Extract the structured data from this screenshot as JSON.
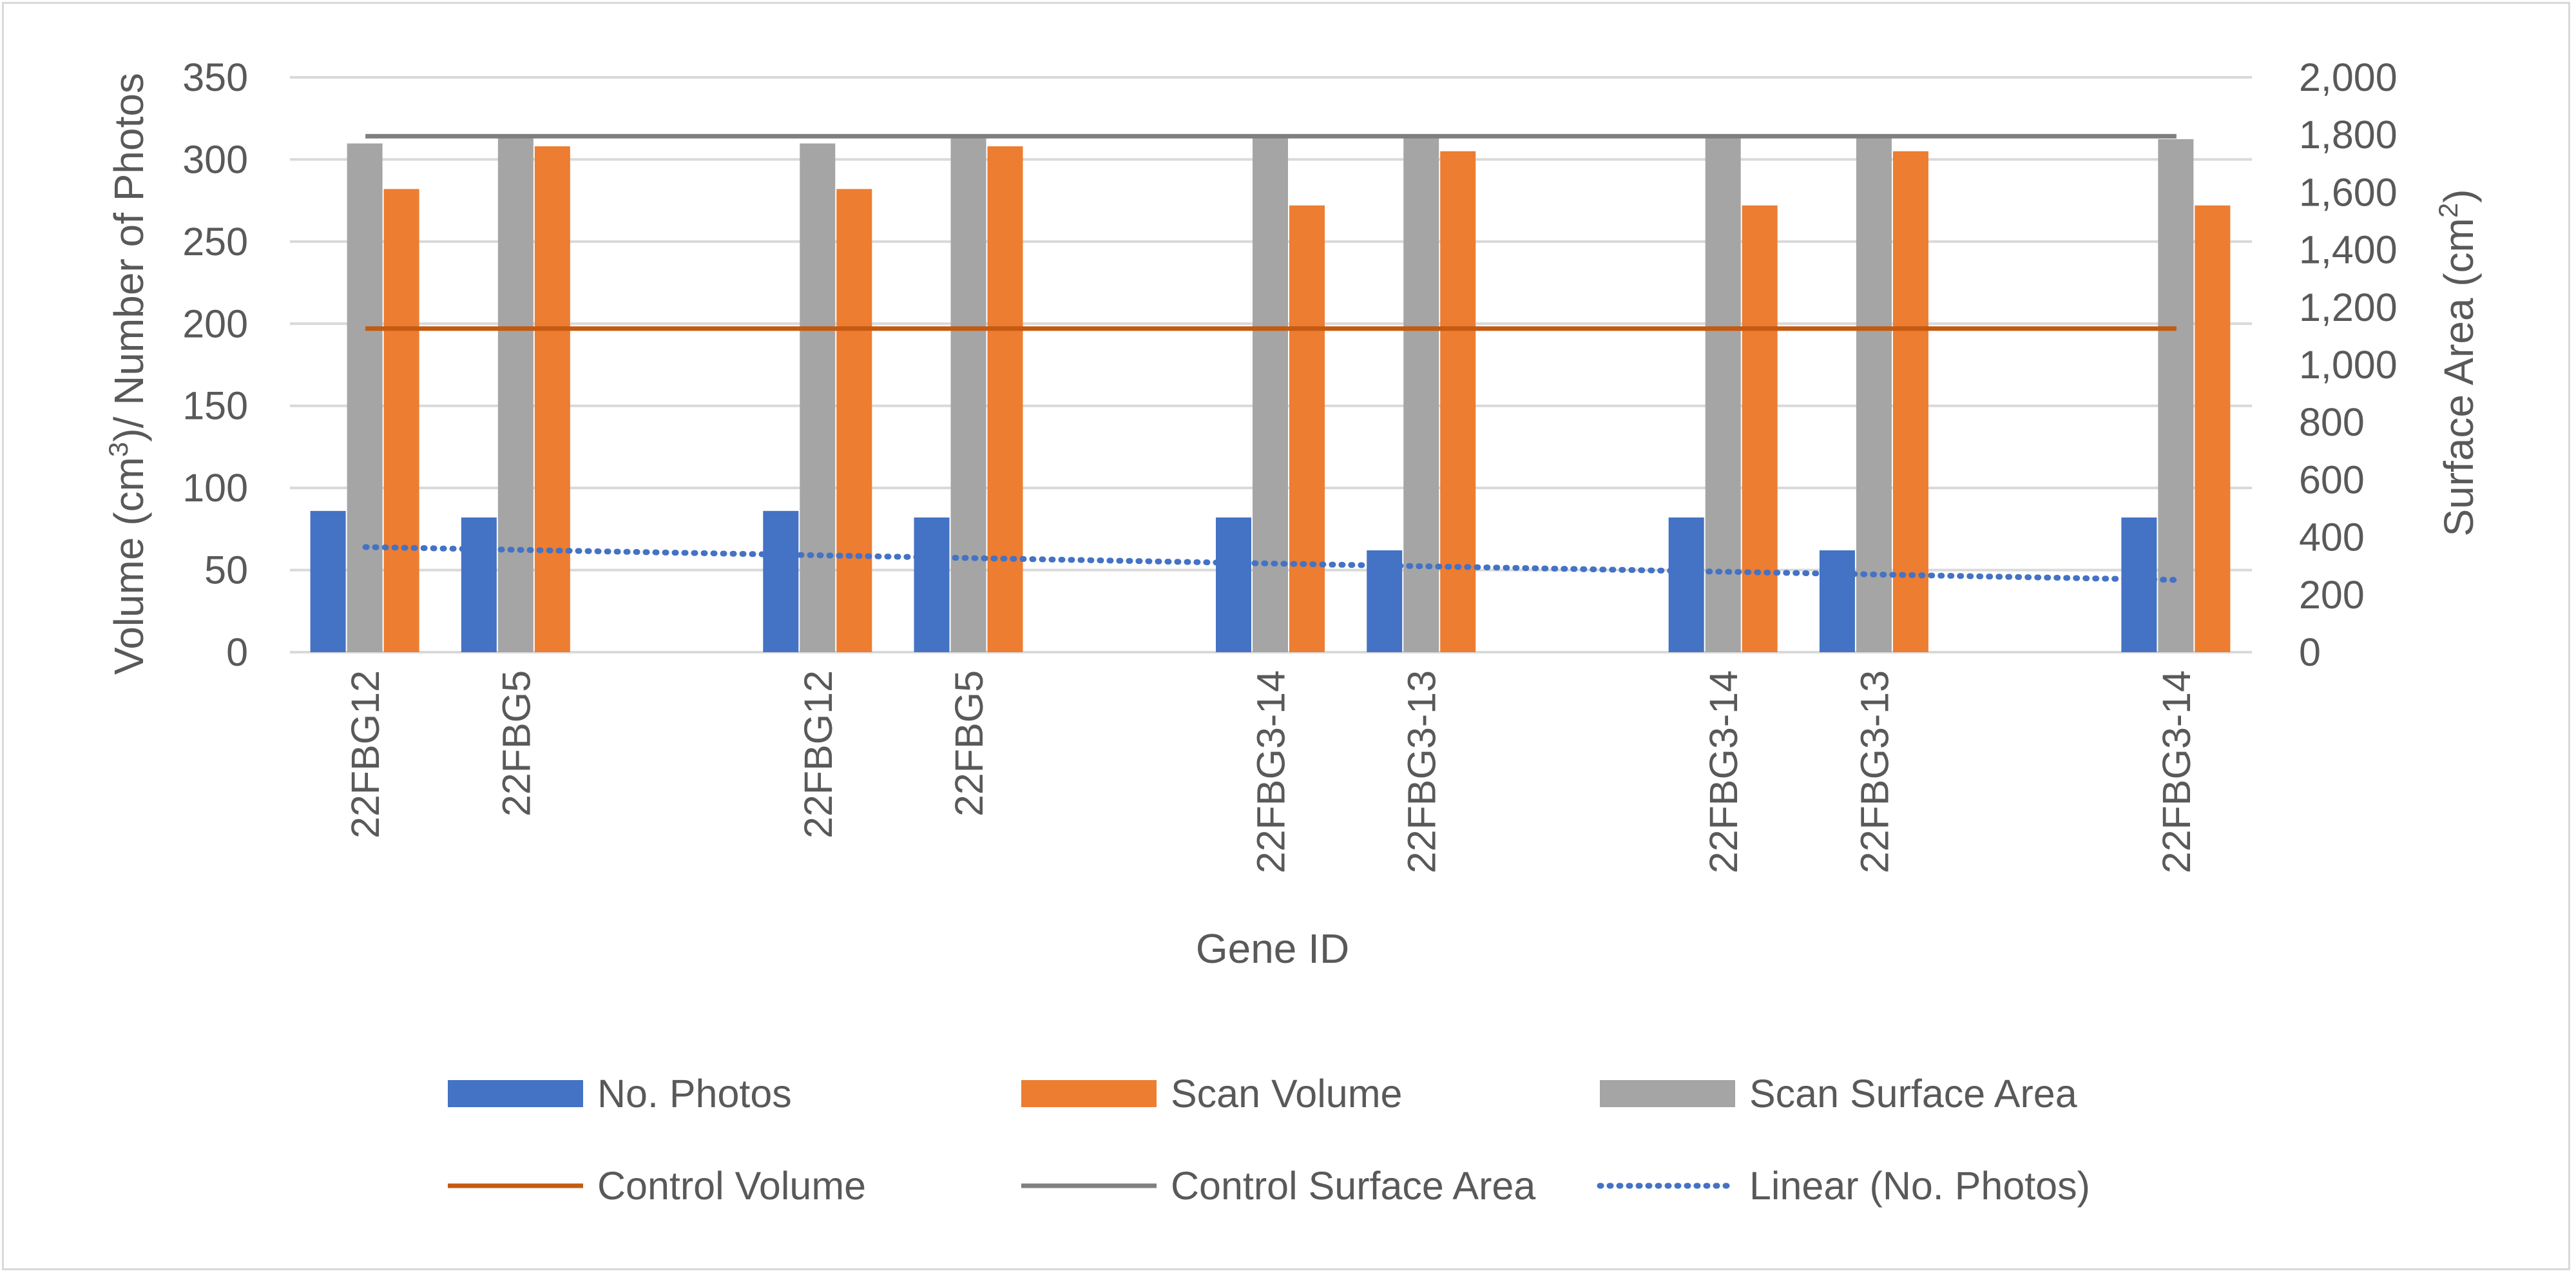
{
  "chart_data": {
    "type": "bar",
    "title": "",
    "xlabel": "Gene ID",
    "ylabel_left": {
      "prefix": "Volume (cm",
      "sup": "3",
      "suffix": ")/ Number of Photos"
    },
    "ylabel_right": {
      "prefix": "Surface Area (cm",
      "sup": "2",
      "suffix": ")"
    },
    "ylim_left": [
      0,
      350
    ],
    "ylim_right": [
      0,
      2000
    ],
    "yticks_left": [
      "0",
      "50",
      "100",
      "150",
      "200",
      "250",
      "300",
      "350"
    ],
    "yticks_right": [
      "0",
      "200",
      "400",
      "600",
      "800",
      "1,000",
      "1,200",
      "1,400",
      "1,600",
      "1,800",
      "2,000"
    ],
    "grid": true,
    "legend_position": "bottom",
    "categories": [
      "22FBG12",
      "22FBG5",
      "",
      "22FBG12",
      "22FBG5",
      "",
      "22FBG3-14",
      "22FBG3-13",
      "",
      "22FBG3-14",
      "22FBG3-13",
      "",
      "22FBG3-14"
    ],
    "series": [
      {
        "name": "No. Photos",
        "axis": "left",
        "kind": "bar",
        "color": "#4472c4",
        "values": [
          86,
          82,
          null,
          86,
          82,
          null,
          82,
          62,
          null,
          82,
          62,
          null,
          82
        ]
      },
      {
        "name": "Scan Surface Area",
        "axis": "right",
        "kind": "bar",
        "color": "#a5a5a5",
        "values": [
          1770,
          1790,
          null,
          1770,
          1790,
          null,
          1800,
          1800,
          null,
          1800,
          1800,
          null,
          1785
        ]
      },
      {
        "name": "Scan Volume",
        "axis": "left",
        "kind": "bar",
        "color": "#ed7d31",
        "values": [
          282,
          308,
          null,
          282,
          308,
          null,
          272,
          305,
          null,
          272,
          305,
          null,
          272
        ]
      },
      {
        "name": "Control Volume",
        "axis": "left",
        "kind": "line",
        "color": "#c55a11",
        "value": 197
      },
      {
        "name": "Control Surface Area",
        "axis": "right",
        "kind": "line",
        "color": "#7f7f7f",
        "value": 1795
      },
      {
        "name": "Linear (No. Photos)",
        "axis": "left",
        "kind": "trendline",
        "color": "#4472c4",
        "start": 64,
        "end": 44
      }
    ],
    "legend": [
      {
        "label": "No. Photos",
        "kind": "bar",
        "color": "#4472c4"
      },
      {
        "label": "Scan Volume",
        "kind": "bar",
        "color": "#ed7d31"
      },
      {
        "label": "Scan Surface Area",
        "kind": "bar",
        "color": "#a5a5a5"
      },
      {
        "label": "Control Volume",
        "kind": "line",
        "color": "#c55a11"
      },
      {
        "label": "Control Surface Area",
        "kind": "line",
        "color": "#7f7f7f"
      },
      {
        "label": "Linear (No. Photos)",
        "kind": "dotted",
        "color": "#4472c4"
      }
    ]
  }
}
